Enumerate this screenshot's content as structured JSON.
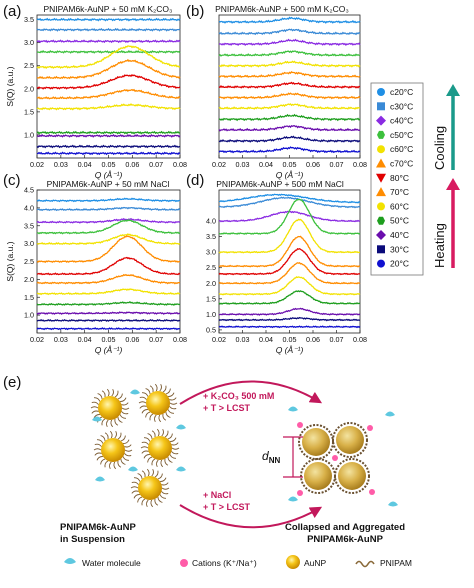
{
  "panels": [
    {
      "label": "(a)",
      "title": "PNIPAM6k-AuNP + 50 mM K₂CO₃",
      "ylabel": "S(Q) (a.u.)",
      "xlabel": "Q (Å⁻¹)",
      "xticks": [
        "0.02",
        "0.03",
        "0.04",
        "0.05",
        "0.06",
        "0.07",
        "0.08"
      ],
      "yticks": [
        "1.0",
        "1.5",
        "2.0",
        "2.5",
        "3.0",
        "3.5"
      ],
      "xlim": [
        0.02,
        0.08
      ],
      "ylim": [
        0.5,
        3.6
      ],
      "peak_q": 0.059,
      "peak_width": 0.008,
      "curves": [
        {
          "base": 3.5,
          "peak": 0.0
        },
        {
          "base": 3.28,
          "peak": 0.0
        },
        {
          "base": 3.03,
          "peak": 0.0
        },
        {
          "base": 2.8,
          "peak": 0.0
        },
        {
          "base": 2.47,
          "peak": 0.45
        },
        {
          "base": 2.24,
          "peak": 0.37
        },
        {
          "base": 2.02,
          "peak": 0.27
        },
        {
          "base": 1.8,
          "peak": 0.17
        },
        {
          "base": 1.57,
          "peak": 0.08
        },
        {
          "base": 1.05,
          "peak": 0.0
        },
        {
          "base": 0.98,
          "peak": 0.0
        },
        {
          "base": 0.75,
          "peak": 0.0
        },
        {
          "base": 0.6,
          "peak": 0.0
        }
      ]
    },
    {
      "label": "(b)",
      "title": "PNIPAM6k-AuNP + 500 mM K₂CO₃",
      "ylabel": "",
      "xlabel": "Q (Å⁻¹)",
      "xticks": [
        "0.02",
        "0.03",
        "0.04",
        "0.05",
        "0.06",
        "0.07",
        "0.08"
      ],
      "yticks": [],
      "xlim": [
        0.02,
        0.08
      ],
      "ylim": [
        0.5,
        3.6
      ],
      "peak_q": 0.051,
      "peak_width": 0.005,
      "curves": [
        {
          "base": 3.45,
          "peak": 0.08
        },
        {
          "base": 3.2,
          "peak": 0.08
        },
        {
          "base": 2.97,
          "peak": 0.08
        },
        {
          "base": 2.73,
          "peak": 0.08
        },
        {
          "base": 2.5,
          "peak": 0.08
        },
        {
          "base": 2.27,
          "peak": 0.08
        },
        {
          "base": 2.04,
          "peak": 0.08
        },
        {
          "base": 1.81,
          "peak": 0.08
        },
        {
          "base": 1.58,
          "peak": 0.08
        },
        {
          "base": 1.34,
          "peak": 0.08
        },
        {
          "base": 1.11,
          "peak": 0.08
        },
        {
          "base": 0.87,
          "peak": 0.08
        },
        {
          "base": 0.64,
          "peak": 0.08
        }
      ]
    },
    {
      "label": "(c)",
      "title": "PNIPAM6k-AuNP + 50 mM NaCl",
      "ylabel": "S(Q) (a.u.)",
      "xlabel": "Q (Å⁻¹)",
      "xticks": [
        "0.02",
        "0.03",
        "0.04",
        "0.05",
        "0.06",
        "0.07",
        "0.08"
      ],
      "yticks": [
        "1.0",
        "1.5",
        "2.0",
        "2.5",
        "3.0",
        "3.5",
        "4.0",
        "4.5"
      ],
      "xlim": [
        0.02,
        0.08
      ],
      "ylim": [
        0.5,
        4.5
      ],
      "peak_q": 0.058,
      "peak_width": 0.006,
      "curves": [
        {
          "base": 4.2,
          "peak": 0.05
        },
        {
          "base": 3.95,
          "peak": 0.05
        },
        {
          "base": 3.6,
          "peak": 0.08
        },
        {
          "base": 3.3,
          "peak": 0.35
        },
        {
          "base": 3.0,
          "peak": 0.25
        },
        {
          "base": 2.5,
          "peak": 0.7
        },
        {
          "base": 2.15,
          "peak": 0.45
        },
        {
          "base": 1.9,
          "peak": 0.22
        },
        {
          "base": 1.6,
          "peak": 0.12
        },
        {
          "base": 1.3,
          "peak": 0.05
        },
        {
          "base": 1.05,
          "peak": 0.02
        },
        {
          "base": 0.85,
          "peak": 0.0
        },
        {
          "base": 0.62,
          "peak": 0.0
        }
      ]
    },
    {
      "label": "(d)",
      "title": "PNIPAM6k-AuNP + 500 mM NaCl",
      "ylabel": "",
      "xlabel": "Q (Å⁻¹)",
      "xticks": [
        "0.02",
        "0.03",
        "0.04",
        "0.05",
        "0.06",
        "0.07",
        "0.08"
      ],
      "yticks": [
        "0.5",
        "1.0",
        "1.5",
        "2.0",
        "2.5",
        "3.0",
        "3.5",
        "4.0"
      ],
      "xlim": [
        0.02,
        0.08
      ],
      "ylim": [
        0.4,
        5.0
      ],
      "peak_q": 0.054,
      "peak_width": 0.0045,
      "curves": [
        {
          "base": 4.6,
          "peak": 0.25,
          "q": 0.045,
          "w": 0.012
        },
        {
          "base": 4.45,
          "peak": 0.3,
          "q": 0.048,
          "w": 0.01
        },
        {
          "base": 4.0,
          "peak": 0.3,
          "q": 0.05,
          "w": 0.008
        },
        {
          "base": 3.6,
          "peak": 1.1
        },
        {
          "base": 3.0,
          "peak": 1.05
        },
        {
          "base": 2.55,
          "peak": 0.95
        },
        {
          "base": 2.3,
          "peak": 0.8
        },
        {
          "base": 2.0,
          "peak": 0.65
        },
        {
          "base": 1.65,
          "peak": 0.55
        },
        {
          "base": 1.35,
          "peak": 0.4
        },
        {
          "base": 1.0,
          "peak": 0.18
        },
        {
          "base": 0.82,
          "peak": 0.06
        },
        {
          "base": 0.6,
          "peak": 0.0
        }
      ]
    }
  ],
  "legend": [
    {
      "label": "c20°C",
      "color": "#1f8fe5",
      "marker": "circle"
    },
    {
      "label": "c30°C",
      "color": "#3a8ad6",
      "marker": "square"
    },
    {
      "label": "c40°C",
      "color": "#8a2be2",
      "marker": "diamond"
    },
    {
      "label": "c50°C",
      "color": "#3cc03c",
      "marker": "hexagon"
    },
    {
      "label": "c60°C",
      "color": "#f2e200",
      "marker": "circle"
    },
    {
      "label": "c70°C",
      "color": "#ff8c00",
      "marker": "triangle-up"
    },
    {
      "label": "80°C",
      "color": "#e00000",
      "marker": "triangle-down"
    },
    {
      "label": "70°C",
      "color": "#ff8c00",
      "marker": "triangle-up"
    },
    {
      "label": "60°C",
      "color": "#f2e200",
      "marker": "circle"
    },
    {
      "label": "50°C",
      "color": "#1e9e1e",
      "marker": "hexagon"
    },
    {
      "label": "40°C",
      "color": "#6a0dad",
      "marker": "diamond"
    },
    {
      "label": "30°C",
      "color": "#0a0a7a",
      "marker": "square"
    },
    {
      "label": "20°C",
      "color": "#1010d0",
      "marker": "circle"
    }
  ],
  "side_labels": {
    "cooling": "Cooling",
    "heating": "Heating"
  },
  "side_colors": {
    "cooling": "#1a9a8a",
    "heating": "#d81b60"
  },
  "panel_e": {
    "label": "(e)",
    "route_top_line1": "+ K₂CO₃ 500 mM",
    "route_top_line2": "+ T > LCST",
    "route_bottom_line1": "+ NaCl",
    "route_bottom_line2": "+ T > LCST",
    "left_caption_line1": "PNIPAM6k-AuNP",
    "left_caption_line2": "in Suspension",
    "right_caption_line1": "Collapsed and Aggregated",
    "right_caption_line2": "PNIPAM6k-AuNP",
    "dnn": "d",
    "dnn_sub": "NN",
    "key_water": "Water molecule",
    "key_cations": "Cations (K⁺/Na⁺)",
    "key_aunp": "AuNP",
    "key_pnipam": "PNIPAM"
  }
}
